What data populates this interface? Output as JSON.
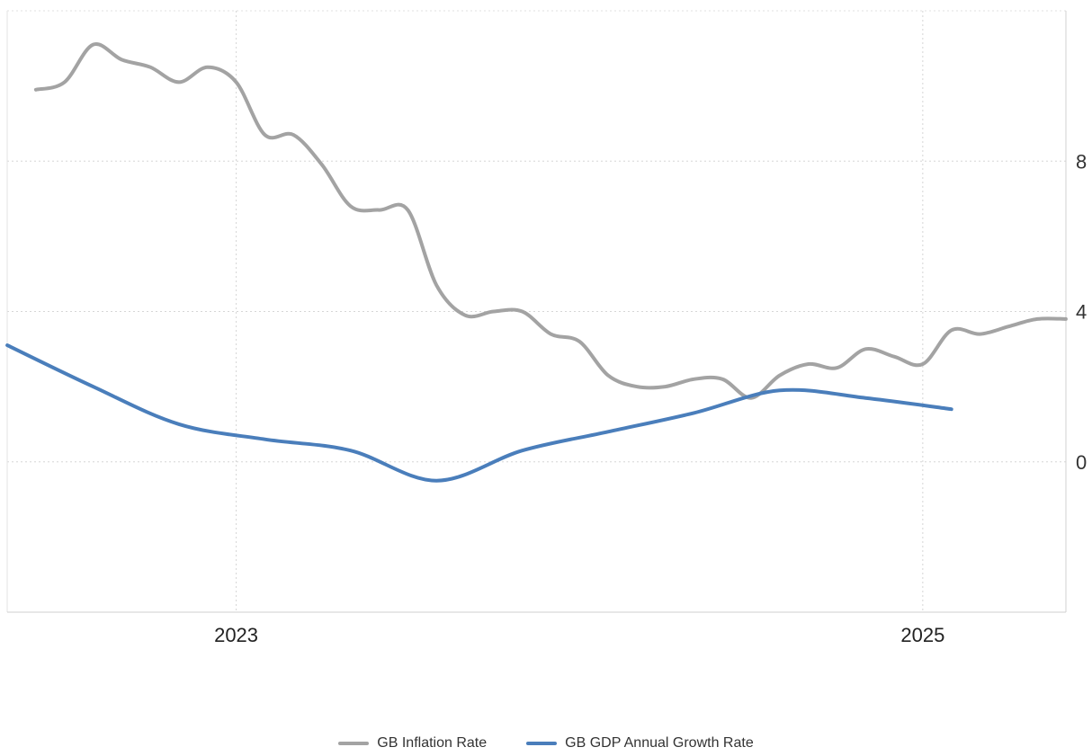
{
  "chart_data": {
    "type": "line",
    "title": "",
    "xlabel": "",
    "ylabel": "",
    "x_ticks": [
      "2023",
      "2025"
    ],
    "y_ticks": [
      0,
      4,
      8
    ],
    "ylim": [
      -4,
      12
    ],
    "grid": true,
    "y_axis_side": "right",
    "legend_position": "bottom-center",
    "series": [
      {
        "name": "GB Inflation Rate",
        "color": "#a3a3a3",
        "points": [
          [
            "2022-06",
            9.9
          ],
          [
            "2022-07",
            10.1
          ],
          [
            "2022-08",
            11.1
          ],
          [
            "2022-09",
            10.7
          ],
          [
            "2022-10",
            10.5
          ],
          [
            "2022-11",
            10.1
          ],
          [
            "2022-12",
            10.5
          ],
          [
            "2023-01",
            10.1
          ],
          [
            "2023-02",
            8.7
          ],
          [
            "2023-03",
            8.7
          ],
          [
            "2023-04",
            7.9
          ],
          [
            "2023-05",
            6.8
          ],
          [
            "2023-06",
            6.7
          ],
          [
            "2023-07",
            6.7
          ],
          [
            "2023-08",
            4.7
          ],
          [
            "2023-09",
            3.9
          ],
          [
            "2023-10",
            4.0
          ],
          [
            "2023-11",
            4.0
          ],
          [
            "2023-12",
            3.4
          ],
          [
            "2024-01",
            3.2
          ],
          [
            "2024-02",
            2.3
          ],
          [
            "2024-03",
            2.0
          ],
          [
            "2024-04",
            2.0
          ],
          [
            "2024-05",
            2.2
          ],
          [
            "2024-06",
            2.2
          ],
          [
            "2024-07",
            1.7
          ],
          [
            "2024-08",
            2.3
          ],
          [
            "2024-09",
            2.6
          ],
          [
            "2024-10",
            2.5
          ],
          [
            "2024-11",
            3.0
          ],
          [
            "2024-12",
            2.8
          ],
          [
            "2025-01",
            2.6
          ],
          [
            "2025-02",
            3.5
          ],
          [
            "2025-03",
            3.4
          ],
          [
            "2025-04",
            3.6
          ],
          [
            "2025-05",
            3.8
          ],
          [
            "2025-06",
            3.8
          ]
        ]
      },
      {
        "name": "GB GDP Annual Growth Rate",
        "color": "#4a7ebb",
        "points": [
          [
            "2022-05",
            3.1
          ],
          [
            "2022-08",
            2.0
          ],
          [
            "2022-11",
            1.0
          ],
          [
            "2023-02",
            0.6
          ],
          [
            "2023-05",
            0.3
          ],
          [
            "2023-08",
            -0.5
          ],
          [
            "2023-11",
            0.3
          ],
          [
            "2024-02",
            0.8
          ],
          [
            "2024-05",
            1.3
          ],
          [
            "2024-08",
            1.9
          ],
          [
            "2024-11",
            1.7
          ],
          [
            "2025-02",
            1.4
          ]
        ]
      }
    ]
  }
}
